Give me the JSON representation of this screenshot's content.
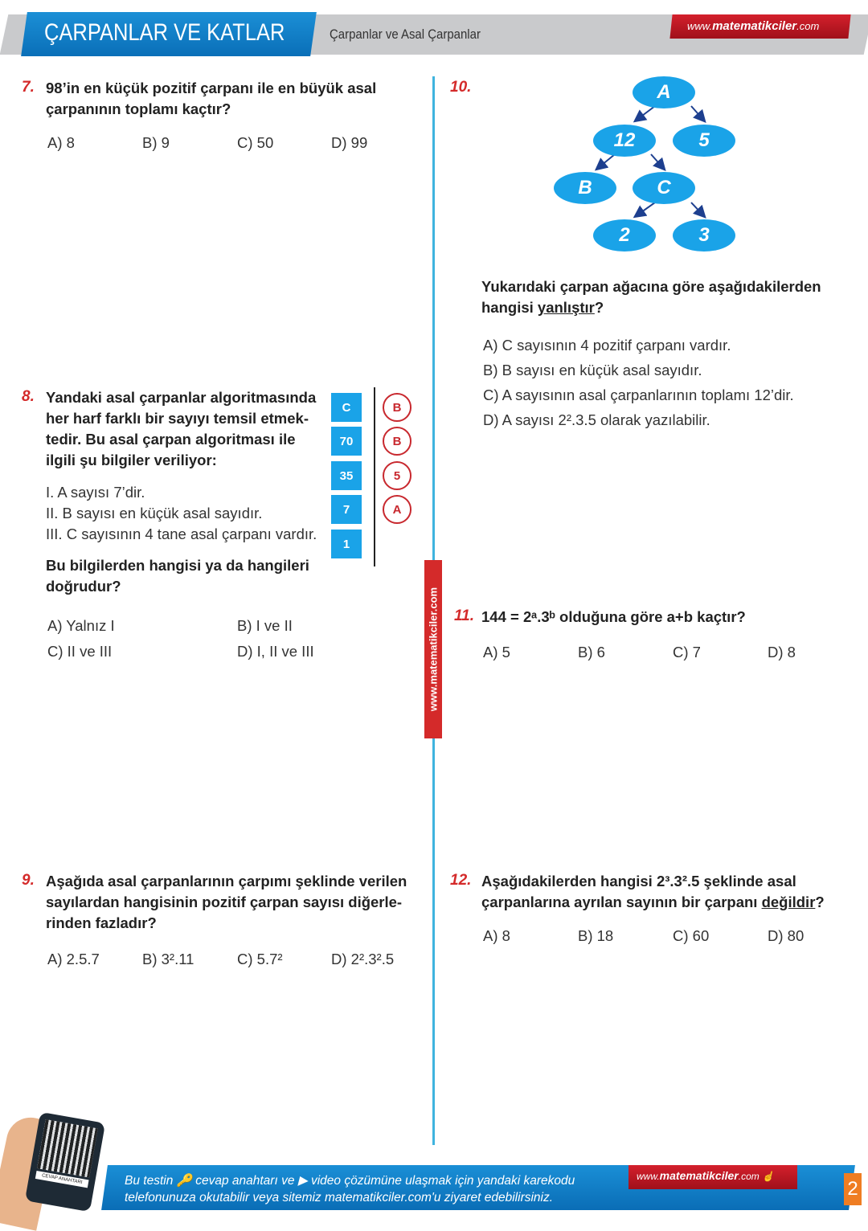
{
  "header": {
    "title": "ÇARPANLAR VE KATLAR",
    "subtitle": "Çarpanlar ve Asal Çarpanlar",
    "url_prefix": "www.",
    "url_brand": "matematikciler",
    "url_suffix": ".com"
  },
  "side_url": "www.matematikciler.com",
  "q7": {
    "num": "7.",
    "text1": "98’in en küçük pozitif çarpanı ile en büyük asal",
    "text2": "çarpanının toplamı kaçtır?",
    "options": [
      "A) 8",
      "B) 9",
      "C) 50",
      "D) 99"
    ]
  },
  "q8": {
    "num": "8.",
    "lines": [
      "Yandaki asal çarpanlar algoritmasında",
      "her harf farklı bir sayıyı temsil etmek-",
      "tedir. Bu asal çarpan algoritması ile",
      "ilgili şu bilgiler veriliyor:"
    ],
    "statements": [
      "I.  A sayısı 7’dir.",
      "II.  B sayısı en küçük asal sayıdır.",
      "III. C sayısının 4 tane asal çarpanı vardır."
    ],
    "question1": "Bu bilgilerden hangisi ya da hangileri",
    "question2": "doğrudur?",
    "left_col": [
      "C",
      "70",
      "35",
      "7",
      "1"
    ],
    "right_col": [
      "B",
      "B",
      "5",
      "A"
    ],
    "options": [
      "A) Yalnız I",
      "B) I ve II",
      "C) II ve III",
      "D) I, II ve III"
    ]
  },
  "q9": {
    "num": "9.",
    "text1": "Aşağıda asal çarpanlarının çarpımı şeklinde verilen",
    "text2": "sayılardan hangisinin pozitif çarpan sayısı diğerle-",
    "text3": "rinden fazladır?",
    "options": [
      "A) 2.5.7",
      "B) 3².11",
      "C) 5.7²",
      "D) 2².3².5"
    ]
  },
  "q10": {
    "num": "10.",
    "tree": {
      "root": "A",
      "l1": [
        "12",
        "5"
      ],
      "l2": [
        "B",
        "C"
      ],
      "l3": [
        "2",
        "3"
      ]
    },
    "text1": "Yukarıdaki çarpan ağacına göre aşağıdakilerden",
    "text2_pre": "hangisi ",
    "text2_u": "yanlıştır",
    "text2_post": "?",
    "options": [
      "A) C sayısının 4 pozitif çarpanı vardır.",
      "B) B sayısı en küçük asal sayıdır.",
      "C) A sayısının asal çarpanlarının toplamı 12’dir.",
      "D) A sayısı 2².3.5 olarak yazılabilir."
    ]
  },
  "q11": {
    "num": "11.",
    "text": "144 = 2ᵃ.3ᵇ olduğuna göre a+b kaçtır?",
    "options": [
      "A) 5",
      "B) 6",
      "C) 7",
      "D) 8"
    ]
  },
  "q12": {
    "num": "12.",
    "text1": "Aşağıdakilerden hangisi 2³.3².5 şeklinde asal",
    "text2_pre": "çarpanlarına ayrılan sayının bir çarpanı ",
    "text2_u": "değildir",
    "text2_post": "?",
    "options": [
      "A) 8",
      "B) 18",
      "C) 60",
      "D) 80"
    ]
  },
  "footer": {
    "line1": "Bu testin 🔑 cevap anahtarı ve ▶ video çözümüne ulaşmak için yandaki karekodu",
    "line2": "telefonunuza okutabilir veya sitemiz matematikciler.com'u ziyaret edebilirsiniz.",
    "url_prefix": "www.",
    "url_brand": "matematikciler",
    "url_suffix": ".com",
    "phone_label": "CEVAP ANAHTARI",
    "page": "2"
  },
  "colors": {
    "blue": "#1aa3e8",
    "red": "#d42a2a",
    "orange": "#ef7d22"
  }
}
